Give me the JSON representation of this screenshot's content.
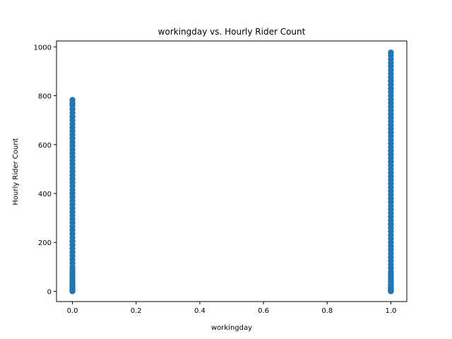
{
  "chart_data": {
    "type": "scatter",
    "title": "workingday vs. Hourly Rider Count",
    "xlabel": "workingday",
    "ylabel": "Hourly Rider Count",
    "xlim": [
      -0.05,
      1.05
    ],
    "ylim": [
      -42,
      1024
    ],
    "xticks": [
      0.0,
      0.2,
      0.4,
      0.6,
      0.8,
      1.0
    ],
    "xtick_labels": [
      "0.0",
      "0.2",
      "0.4",
      "0.6",
      "0.8",
      "1.0"
    ],
    "yticks": [
      0,
      200,
      400,
      600,
      800,
      1000
    ],
    "ytick_labels": [
      "0",
      "200",
      "400",
      "600",
      "800",
      "1000"
    ],
    "grid": false,
    "legend": "none",
    "colors": {
      "points": "#1f77b4",
      "axes": "#000000"
    },
    "series": [
      {
        "x": 0,
        "y": [
          0,
          2,
          5,
          8,
          12,
          15,
          20,
          25,
          30,
          35,
          40,
          50,
          60,
          70,
          80,
          90,
          100,
          115,
          130,
          145,
          160,
          175,
          190,
          205,
          220,
          235,
          250,
          265,
          280,
          295,
          310,
          325,
          340,
          355,
          370,
          385,
          400,
          415,
          430,
          445,
          460,
          475,
          490,
          505,
          520,
          535,
          550,
          565,
          580,
          595,
          610,
          625,
          640,
          655,
          670,
          685,
          700,
          715,
          730,
          745,
          760,
          770,
          783
        ]
      },
      {
        "x": 1,
        "y": [
          0,
          2,
          5,
          8,
          12,
          15,
          20,
          25,
          30,
          40,
          50,
          60,
          70,
          80,
          95,
          110,
          125,
          140,
          155,
          170,
          185,
          200,
          215,
          230,
          245,
          260,
          275,
          290,
          305,
          320,
          335,
          350,
          365,
          380,
          395,
          410,
          425,
          440,
          455,
          470,
          485,
          500,
          515,
          530,
          545,
          560,
          575,
          590,
          605,
          620,
          635,
          650,
          665,
          680,
          695,
          710,
          725,
          740,
          755,
          770,
          785,
          800,
          815,
          830,
          845,
          860,
          875,
          890,
          905,
          920,
          935,
          950,
          965,
          977
        ]
      }
    ]
  }
}
